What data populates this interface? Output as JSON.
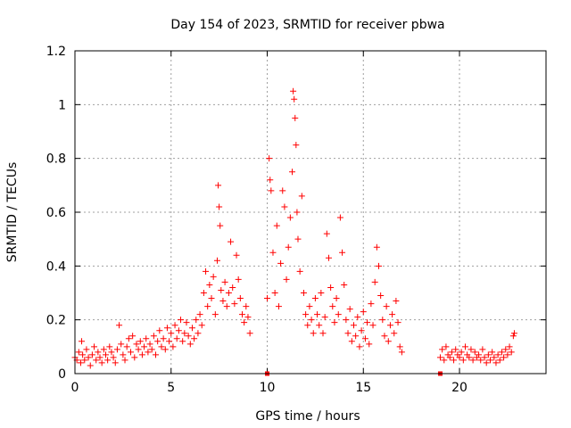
{
  "chart_data": {
    "type": "scatter",
    "title": "Day 154 of 2023, SRMTID for receiver pbwa",
    "xlabel": "GPS time / hours",
    "ylabel": "SRMTID / TECUs",
    "xlim": [
      0,
      24.5
    ],
    "ylim": [
      0,
      1.2
    ],
    "xticks": [
      0,
      5,
      10,
      15,
      20
    ],
    "yticks": [
      0,
      0.2,
      0.4,
      0.6,
      0.8,
      1.0,
      1.2
    ],
    "xtick_labels": [
      "0",
      "5",
      "10",
      "15",
      "20"
    ],
    "ytick_labels": [
      "0",
      "0.2",
      "0.4",
      "0.6",
      "0.8",
      "1",
      "1.2"
    ],
    "grid": true,
    "marker": "plus",
    "color": "#ff0000",
    "series": [
      {
        "name": "SRMTID",
        "points": [
          [
            0.0,
            0.06
          ],
          [
            0.1,
            0.05
          ],
          [
            0.2,
            0.08
          ],
          [
            0.3,
            0.04
          ],
          [
            0.35,
            0.12
          ],
          [
            0.4,
            0.07
          ],
          [
            0.5,
            0.05
          ],
          [
            0.6,
            0.09
          ],
          [
            0.7,
            0.06
          ],
          [
            0.8,
            0.03
          ],
          [
            0.9,
            0.07
          ],
          [
            1.0,
            0.1
          ],
          [
            1.1,
            0.05
          ],
          [
            1.2,
            0.08
          ],
          [
            1.3,
            0.06
          ],
          [
            1.4,
            0.04
          ],
          [
            1.5,
            0.09
          ],
          [
            1.6,
            0.07
          ],
          [
            1.7,
            0.05
          ],
          [
            1.8,
            0.1
          ],
          [
            1.9,
            0.08
          ],
          [
            2.0,
            0.06
          ],
          [
            2.1,
            0.04
          ],
          [
            2.2,
            0.09
          ],
          [
            2.3,
            0.18
          ],
          [
            2.4,
            0.11
          ],
          [
            2.5,
            0.07
          ],
          [
            2.6,
            0.05
          ],
          [
            2.7,
            0.1
          ],
          [
            2.8,
            0.13
          ],
          [
            2.9,
            0.08
          ],
          [
            3.0,
            0.14
          ],
          [
            3.1,
            0.06
          ],
          [
            3.2,
            0.11
          ],
          [
            3.3,
            0.09
          ],
          [
            3.4,
            0.12
          ],
          [
            3.5,
            0.07
          ],
          [
            3.6,
            0.1
          ],
          [
            3.7,
            0.13
          ],
          [
            3.8,
            0.08
          ],
          [
            3.9,
            0.11
          ],
          [
            4.0,
            0.09
          ],
          [
            4.1,
            0.14
          ],
          [
            4.2,
            0.07
          ],
          [
            4.3,
            0.12
          ],
          [
            4.4,
            0.16
          ],
          [
            4.5,
            0.1
          ],
          [
            4.6,
            0.13
          ],
          [
            4.7,
            0.09
          ],
          [
            4.8,
            0.17
          ],
          [
            4.9,
            0.12
          ],
          [
            5.0,
            0.15
          ],
          [
            5.1,
            0.1
          ],
          [
            5.2,
            0.18
          ],
          [
            5.3,
            0.13
          ],
          [
            5.4,
            0.16
          ],
          [
            5.5,
            0.2
          ],
          [
            5.6,
            0.12
          ],
          [
            5.7,
            0.15
          ],
          [
            5.8,
            0.19
          ],
          [
            5.9,
            0.14
          ],
          [
            6.0,
            0.11
          ],
          [
            6.1,
            0.17
          ],
          [
            6.2,
            0.13
          ],
          [
            6.3,
            0.2
          ],
          [
            6.4,
            0.15
          ],
          [
            6.5,
            0.22
          ],
          [
            6.6,
            0.18
          ],
          [
            6.7,
            0.3
          ],
          [
            6.8,
            0.38
          ],
          [
            6.9,
            0.25
          ],
          [
            7.0,
            0.33
          ],
          [
            7.1,
            0.28
          ],
          [
            7.2,
            0.36
          ],
          [
            7.3,
            0.22
          ],
          [
            7.4,
            0.42
          ],
          [
            7.45,
            0.7
          ],
          [
            7.5,
            0.62
          ],
          [
            7.55,
            0.55
          ],
          [
            7.6,
            0.31
          ],
          [
            7.7,
            0.27
          ],
          [
            7.8,
            0.34
          ],
          [
            7.9,
            0.25
          ],
          [
            8.0,
            0.3
          ],
          [
            8.1,
            0.49
          ],
          [
            8.2,
            0.32
          ],
          [
            8.3,
            0.26
          ],
          [
            8.4,
            0.44
          ],
          [
            8.5,
            0.35
          ],
          [
            8.6,
            0.28
          ],
          [
            8.7,
            0.22
          ],
          [
            8.8,
            0.19
          ],
          [
            8.9,
            0.25
          ],
          [
            9.0,
            0.21
          ],
          [
            9.1,
            0.15
          ],
          [
            10.0,
            0.28
          ],
          [
            10.1,
            0.8
          ],
          [
            10.15,
            0.72
          ],
          [
            10.2,
            0.68
          ],
          [
            10.3,
            0.45
          ],
          [
            10.4,
            0.3
          ],
          [
            10.5,
            0.55
          ],
          [
            10.6,
            0.25
          ],
          [
            10.7,
            0.41
          ],
          [
            10.8,
            0.68
          ],
          [
            10.9,
            0.62
          ],
          [
            11.0,
            0.35
          ],
          [
            11.1,
            0.47
          ],
          [
            11.2,
            0.58
          ],
          [
            11.3,
            0.75
          ],
          [
            11.35,
            1.05
          ],
          [
            11.4,
            1.02
          ],
          [
            11.45,
            0.95
          ],
          [
            11.5,
            0.85
          ],
          [
            11.55,
            0.6
          ],
          [
            11.6,
            0.5
          ],
          [
            11.7,
            0.38
          ],
          [
            11.8,
            0.66
          ],
          [
            11.9,
            0.3
          ],
          [
            12.0,
            0.22
          ],
          [
            12.1,
            0.18
          ],
          [
            12.2,
            0.25
          ],
          [
            12.3,
            0.2
          ],
          [
            12.4,
            0.15
          ],
          [
            12.5,
            0.28
          ],
          [
            12.6,
            0.22
          ],
          [
            12.7,
            0.18
          ],
          [
            12.8,
            0.3
          ],
          [
            12.9,
            0.15
          ],
          [
            13.0,
            0.21
          ],
          [
            13.1,
            0.52
          ],
          [
            13.2,
            0.43
          ],
          [
            13.3,
            0.32
          ],
          [
            13.4,
            0.25
          ],
          [
            13.5,
            0.19
          ],
          [
            13.6,
            0.28
          ],
          [
            13.7,
            0.22
          ],
          [
            13.8,
            0.58
          ],
          [
            13.9,
            0.45
          ],
          [
            14.0,
            0.33
          ],
          [
            14.1,
            0.2
          ],
          [
            14.2,
            0.15
          ],
          [
            14.3,
            0.24
          ],
          [
            14.4,
            0.12
          ],
          [
            14.5,
            0.18
          ],
          [
            14.6,
            0.14
          ],
          [
            14.7,
            0.21
          ],
          [
            14.8,
            0.1
          ],
          [
            14.9,
            0.16
          ],
          [
            15.0,
            0.23
          ],
          [
            15.1,
            0.13
          ],
          [
            15.2,
            0.19
          ],
          [
            15.3,
            0.11
          ],
          [
            15.4,
            0.26
          ],
          [
            15.5,
            0.18
          ],
          [
            15.6,
            0.34
          ],
          [
            15.7,
            0.47
          ],
          [
            15.8,
            0.4
          ],
          [
            15.9,
            0.29
          ],
          [
            16.0,
            0.2
          ],
          [
            16.1,
            0.14
          ],
          [
            16.2,
            0.25
          ],
          [
            16.3,
            0.12
          ],
          [
            16.4,
            0.18
          ],
          [
            16.5,
            0.22
          ],
          [
            16.6,
            0.15
          ],
          [
            16.7,
            0.27
          ],
          [
            16.8,
            0.19
          ],
          [
            16.9,
            0.1
          ],
          [
            17.0,
            0.08
          ],
          [
            19.0,
            0.06
          ],
          [
            19.1,
            0.09
          ],
          [
            19.2,
            0.05
          ],
          [
            19.3,
            0.1
          ],
          [
            19.4,
            0.07
          ],
          [
            19.5,
            0.06
          ],
          [
            19.6,
            0.08
          ],
          [
            19.7,
            0.05
          ],
          [
            19.8,
            0.09
          ],
          [
            19.9,
            0.07
          ],
          [
            20.0,
            0.06
          ],
          [
            20.1,
            0.08
          ],
          [
            20.2,
            0.05
          ],
          [
            20.3,
            0.1
          ],
          [
            20.4,
            0.07
          ],
          [
            20.5,
            0.06
          ],
          [
            20.6,
            0.09
          ],
          [
            20.7,
            0.05
          ],
          [
            20.8,
            0.08
          ],
          [
            20.9,
            0.06
          ],
          [
            21.0,
            0.07
          ],
          [
            21.1,
            0.05
          ],
          [
            21.2,
            0.09
          ],
          [
            21.3,
            0.06
          ],
          [
            21.4,
            0.04
          ],
          [
            21.5,
            0.07
          ],
          [
            21.6,
            0.05
          ],
          [
            21.7,
            0.08
          ],
          [
            21.8,
            0.06
          ],
          [
            21.9,
            0.04
          ],
          [
            22.0,
            0.07
          ],
          [
            22.1,
            0.05
          ],
          [
            22.2,
            0.08
          ],
          [
            22.3,
            0.06
          ],
          [
            22.4,
            0.09
          ],
          [
            22.5,
            0.07
          ],
          [
            22.6,
            0.1
          ],
          [
            22.7,
            0.08
          ],
          [
            22.8,
            0.14
          ],
          [
            22.85,
            0.15
          ]
        ]
      }
    ],
    "outliers_at_zero": [
      10.0,
      19.0
    ]
  }
}
